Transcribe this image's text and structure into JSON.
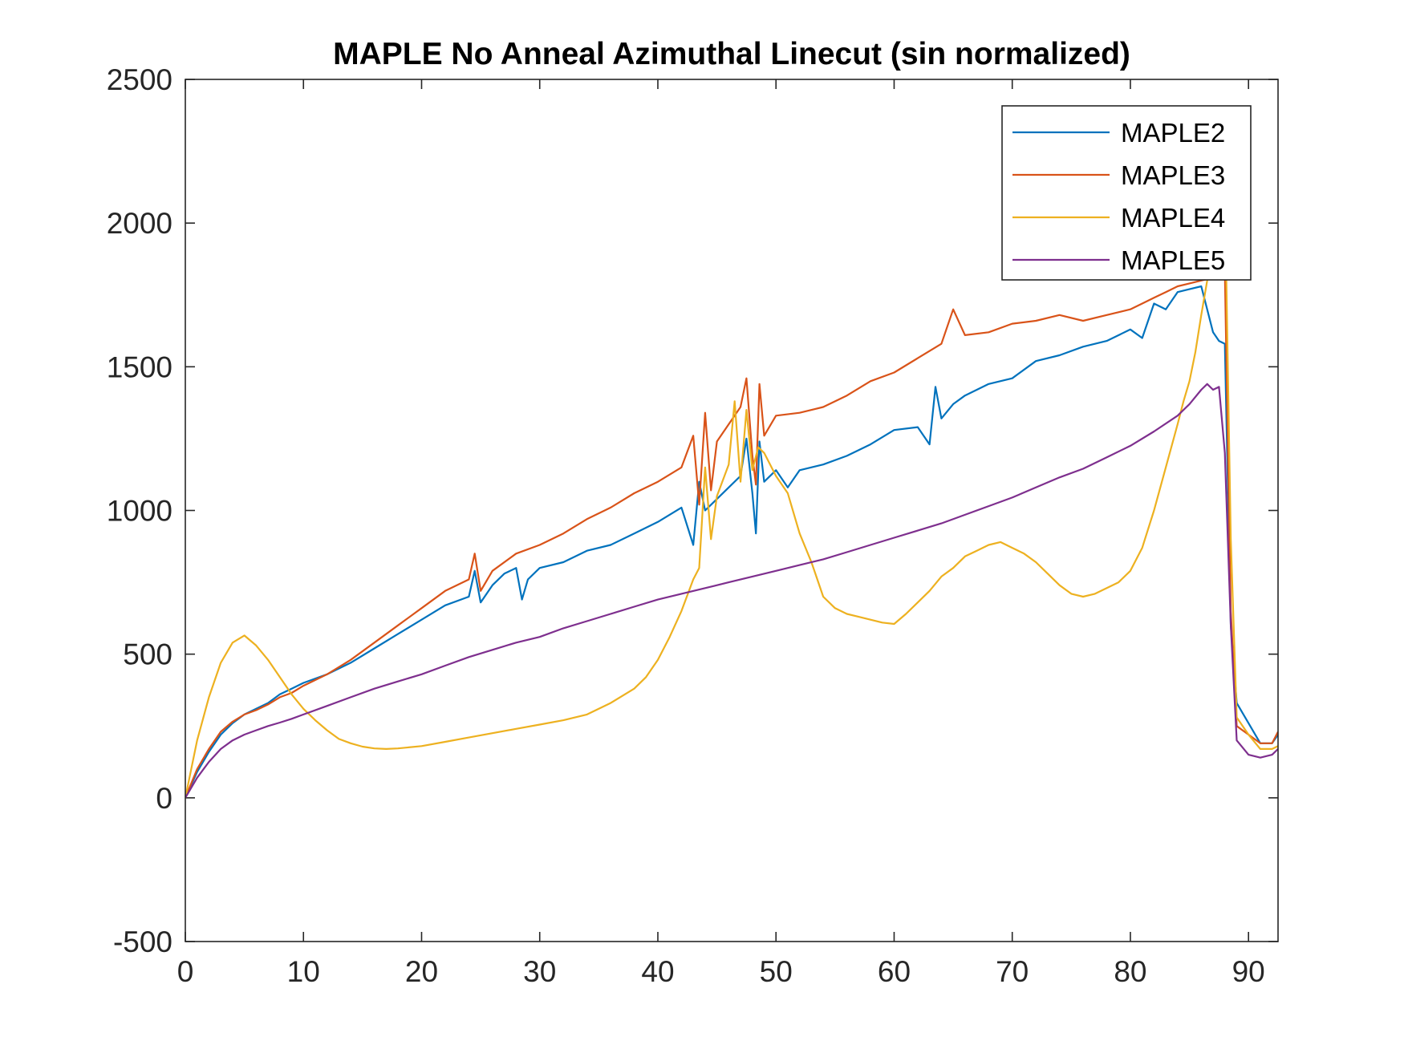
{
  "chart_data": {
    "type": "line",
    "title": "MAPLE No Anneal Azimuthal Linecut (sin normalized)",
    "xlabel": "",
    "ylabel": "",
    "xlim": [
      0,
      92.5
    ],
    "ylim": [
      -500,
      2500
    ],
    "xticks": [
      0,
      10,
      20,
      30,
      40,
      50,
      60,
      70,
      80,
      90
    ],
    "yticks": [
      -500,
      0,
      500,
      1000,
      1500,
      2000,
      2500
    ],
    "xtick_labels": [
      "0",
      "10",
      "20",
      "30",
      "40",
      "50",
      "60",
      "70",
      "80",
      "90"
    ],
    "ytick_labels": [
      "-500",
      "0",
      "500",
      "1000",
      "1500",
      "2000",
      "2500"
    ],
    "grid": false,
    "legend": {
      "position": "top-right",
      "entries": [
        "MAPLE2",
        "MAPLE3",
        "MAPLE4",
        "MAPLE5"
      ]
    },
    "series": [
      {
        "name": "MAPLE2",
        "color": "#0072BD",
        "x": [
          0,
          1,
          2,
          3,
          4,
          5,
          6,
          7,
          8,
          9,
          10,
          12,
          14,
          16,
          18,
          20,
          22,
          24,
          24.5,
          25,
          26,
          27,
          28,
          28.5,
          29,
          30,
          32,
          34,
          36,
          38,
          40,
          42,
          43,
          43.5,
          44,
          45,
          46,
          47,
          47.5,
          48,
          48.3,
          48.6,
          49,
          50,
          51,
          52,
          54,
          56,
          58,
          60,
          62,
          63,
          63.5,
          64,
          65,
          66,
          68,
          70,
          72,
          74,
          76,
          78,
          80,
          81,
          82,
          83,
          84,
          85,
          86,
          87,
          87.5,
          88,
          88.5,
          89,
          90,
          91,
          92,
          92.5
        ],
        "y": [
          0,
          90,
          160,
          220,
          260,
          290,
          310,
          330,
          360,
          380,
          400,
          430,
          470,
          520,
          570,
          620,
          670,
          700,
          790,
          680,
          740,
          780,
          800,
          690,
          760,
          800,
          820,
          860,
          880,
          920,
          960,
          1010,
          880,
          1100,
          1000,
          1040,
          1080,
          1120,
          1250,
          1060,
          920,
          1240,
          1100,
          1140,
          1080,
          1140,
          1160,
          1190,
          1230,
          1280,
          1290,
          1230,
          1430,
          1320,
          1370,
          1400,
          1440,
          1460,
          1520,
          1540,
          1570,
          1590,
          1630,
          1600,
          1720,
          1700,
          1760,
          1770,
          1780,
          1620,
          1590,
          1580,
          600,
          330,
          260,
          190,
          190,
          220
        ]
      },
      {
        "name": "MAPLE3",
        "color": "#D95319",
        "x": [
          0,
          1,
          2,
          3,
          4,
          5,
          6,
          7,
          8,
          9,
          10,
          12,
          14,
          16,
          18,
          20,
          22,
          24,
          24.5,
          25,
          26,
          28,
          30,
          32,
          34,
          36,
          38,
          40,
          42,
          43,
          43.5,
          44,
          44.5,
          45,
          46,
          47,
          47.5,
          48,
          48.3,
          48.6,
          49,
          50,
          52,
          54,
          56,
          58,
          60,
          62,
          64,
          65,
          66,
          68,
          70,
          72,
          74,
          76,
          78,
          80,
          81,
          82,
          83,
          84,
          85,
          86,
          87,
          87.5,
          88,
          88.5,
          89,
          90,
          91,
          92,
          92.5
        ],
        "y": [
          0,
          100,
          170,
          230,
          265,
          290,
          305,
          325,
          350,
          365,
          390,
          430,
          480,
          540,
          600,
          660,
          720,
          760,
          850,
          720,
          790,
          850,
          880,
          920,
          970,
          1010,
          1060,
          1100,
          1150,
          1260,
          1020,
          1340,
          1070,
          1240,
          1300,
          1360,
          1460,
          1190,
          1090,
          1440,
          1260,
          1330,
          1340,
          1360,
          1400,
          1450,
          1480,
          1530,
          1580,
          1700,
          1610,
          1620,
          1650,
          1660,
          1680,
          1660,
          1680,
          1700,
          1720,
          1740,
          1760,
          1780,
          1790,
          1800,
          1810,
          1820,
          1830,
          650,
          250,
          220,
          190,
          190,
          230
        ]
      },
      {
        "name": "MAPLE4",
        "color": "#EDB120",
        "x": [
          0,
          1,
          2,
          3,
          4,
          5,
          6,
          7,
          8,
          9,
          10,
          11,
          12,
          13,
          14,
          15,
          16,
          17,
          18,
          20,
          22,
          24,
          26,
          28,
          30,
          32,
          34,
          36,
          38,
          39,
          40,
          41,
          42,
          43,
          43.5,
          44,
          44.5,
          45,
          46,
          46.5,
          47,
          47.5,
          48,
          48.5,
          49,
          50,
          51,
          52,
          53,
          54,
          55,
          56,
          57,
          58,
          59,
          60,
          61,
          62,
          63,
          64,
          65,
          66,
          67,
          68,
          69,
          70,
          71,
          72,
          73,
          74,
          75,
          76,
          77,
          78,
          79,
          80,
          81,
          82,
          83,
          84,
          84.5,
          85,
          85.5,
          86,
          86.5,
          87,
          87.5,
          88,
          88.5,
          89,
          90,
          91,
          92,
          92.5
        ],
        "y": [
          0,
          200,
          350,
          470,
          540,
          565,
          530,
          480,
          420,
          360,
          310,
          270,
          235,
          205,
          190,
          178,
          172,
          170,
          172,
          180,
          195,
          210,
          225,
          240,
          255,
          270,
          290,
          330,
          380,
          420,
          480,
          560,
          650,
          760,
          800,
          1150,
          900,
          1050,
          1160,
          1380,
          1100,
          1350,
          1140,
          1220,
          1200,
          1120,
          1060,
          920,
          820,
          700,
          660,
          640,
          630,
          620,
          610,
          605,
          640,
          680,
          720,
          770,
          800,
          840,
          860,
          880,
          890,
          870,
          850,
          820,
          780,
          740,
          710,
          700,
          710,
          730,
          750,
          790,
          870,
          1000,
          1150,
          1300,
          1380,
          1450,
          1550,
          1680,
          1800,
          1900,
          2000,
          2100,
          900,
          280,
          220,
          170,
          170,
          180
        ]
      },
      {
        "name": "MAPLE5",
        "color": "#7E2F8E",
        "x": [
          0,
          1,
          2,
          3,
          4,
          5,
          6,
          7,
          8,
          9,
          10,
          12,
          14,
          16,
          18,
          20,
          22,
          24,
          26,
          28,
          30,
          32,
          34,
          36,
          38,
          40,
          42,
          44,
          46,
          48,
          50,
          52,
          54,
          56,
          58,
          60,
          62,
          64,
          66,
          68,
          70,
          72,
          74,
          76,
          78,
          80,
          82,
          84,
          85,
          86,
          86.5,
          87,
          87.5,
          88,
          88.5,
          89,
          90,
          91,
          92,
          92.5
        ],
        "y": [
          0,
          70,
          125,
          170,
          200,
          220,
          235,
          250,
          262,
          275,
          290,
          320,
          350,
          380,
          405,
          430,
          460,
          490,
          515,
          540,
          560,
          590,
          615,
          640,
          665,
          690,
          710,
          730,
          750,
          770,
          790,
          810,
          830,
          855,
          880,
          905,
          930,
          955,
          985,
          1015,
          1045,
          1080,
          1115,
          1145,
          1185,
          1225,
          1275,
          1330,
          1370,
          1420,
          1440,
          1420,
          1430,
          1200,
          600,
          200,
          150,
          140,
          150,
          170
        ]
      }
    ]
  }
}
